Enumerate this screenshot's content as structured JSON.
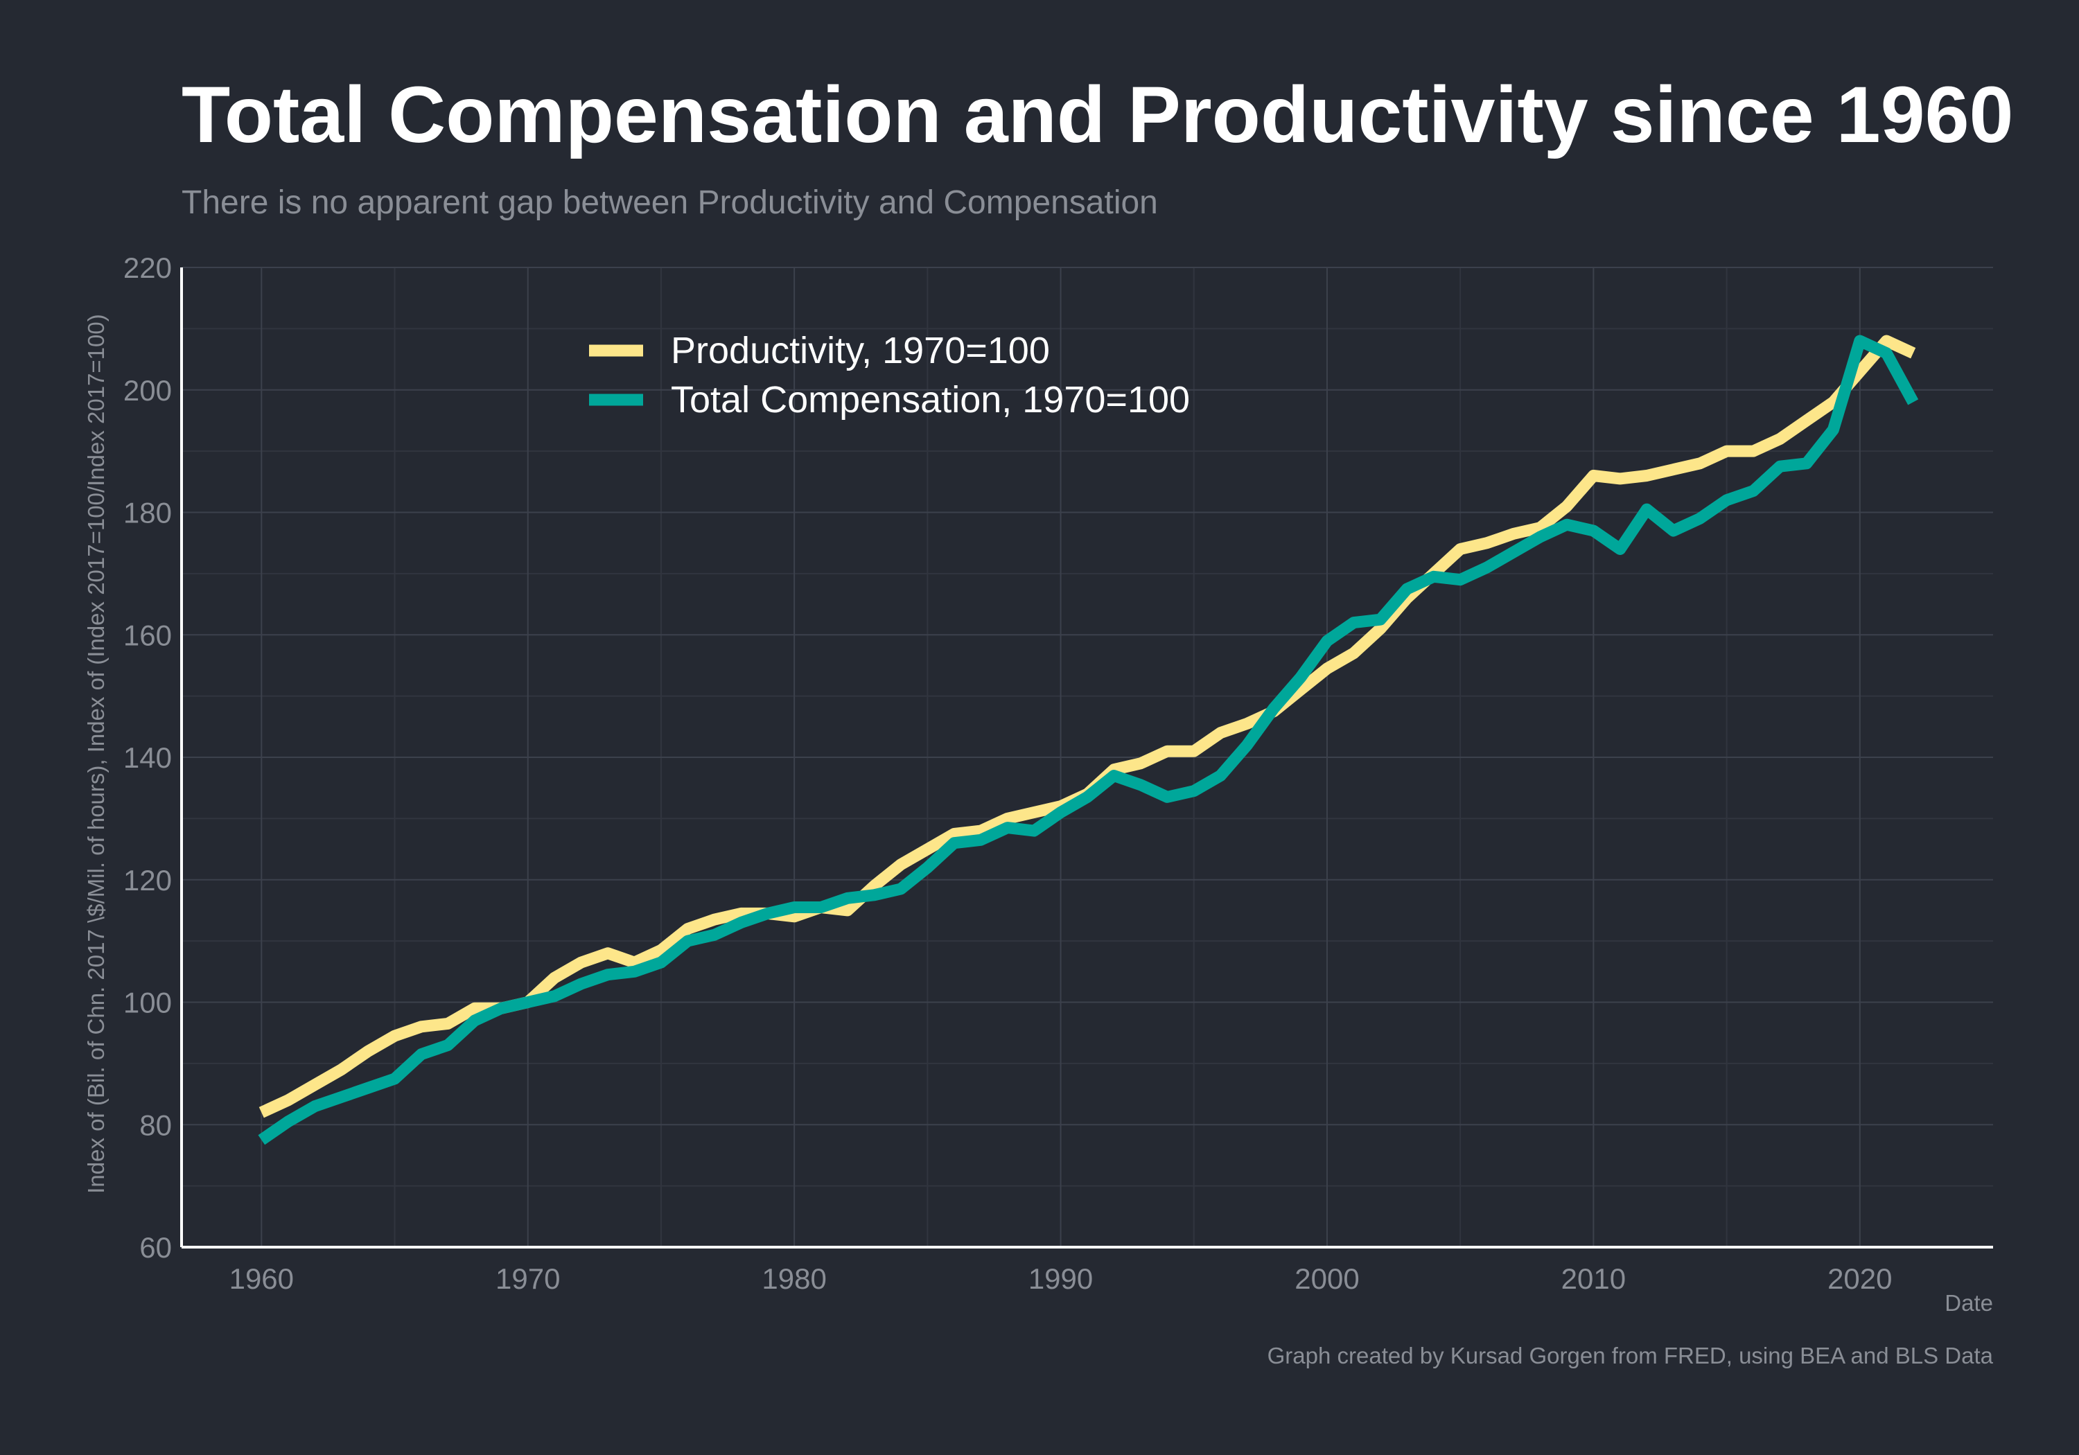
{
  "colors": {
    "background": "#252932",
    "productivity": "#fde68a",
    "compensation": "#00a79a",
    "text_primary": "#ffffff",
    "text_secondary": "#8a8e96",
    "grid": "#3c414c"
  },
  "chart_data": {
    "type": "line",
    "title": "Total Compensation and Productivity since 1960",
    "subtitle": "There is no apparent gap between Productivity and Compensation",
    "xlabel": "Date",
    "ylabel": "Index of (Bil. of Chn. 2017 \\$/Mil. of hours), Index of (Index 2017=100/Index 2017=100)",
    "caption": "Graph created by Kursad Gorgen from FRED, using BEA and BLS Data",
    "xlim": [
      1957,
      2025
    ],
    "ylim": [
      60,
      220
    ],
    "x_ticks": [
      1960,
      1970,
      1980,
      1990,
      2000,
      2010,
      2020
    ],
    "x_tick_labels": [
      "1960",
      "1970",
      "1980",
      "1990",
      "2000",
      "2010",
      "2020"
    ],
    "y_ticks": [
      60,
      80,
      100,
      120,
      140,
      160,
      180,
      200,
      220
    ],
    "y_tick_labels": [
      "60",
      "80",
      "100",
      "120",
      "140",
      "160",
      "180",
      "200",
      "220"
    ],
    "grid": true,
    "legend_position": "top-center",
    "x": [
      1960,
      1961,
      1962,
      1963,
      1964,
      1965,
      1966,
      1967,
      1968,
      1969,
      1970,
      1971,
      1972,
      1973,
      1974,
      1975,
      1976,
      1977,
      1978,
      1979,
      1980,
      1981,
      1982,
      1983,
      1984,
      1985,
      1986,
      1987,
      1988,
      1989,
      1990,
      1991,
      1992,
      1993,
      1994,
      1995,
      1996,
      1997,
      1998,
      1999,
      2000,
      2001,
      2002,
      2003,
      2004,
      2005,
      2006,
      2007,
      2008,
      2009,
      2010,
      2011,
      2012,
      2013,
      2014,
      2015,
      2016,
      2017,
      2018,
      2019,
      2020,
      2021,
      2022
    ],
    "series": [
      {
        "name": "Productivity, 1970=100",
        "color": "#fde68a",
        "values": [
          82,
          84,
          86.5,
          89,
          92,
          94.5,
          96,
          96.5,
          99,
          99,
          100,
          104,
          106.5,
          108,
          106.5,
          108.5,
          112,
          113.5,
          114.5,
          114.5,
          114,
          115.5,
          115,
          119,
          122.5,
          125,
          127.5,
          128,
          130,
          131,
          132,
          134,
          138,
          139,
          141,
          141,
          144,
          145.5,
          147.5,
          151,
          154.5,
          157,
          161,
          166,
          170,
          174,
          175,
          176.5,
          177.5,
          181,
          186,
          185.5,
          186,
          187,
          188,
          190,
          190,
          192,
          195,
          198,
          203,
          208,
          206
        ]
      },
      {
        "name": "Total Compensation, 1970=100",
        "color": "#00a79a",
        "values": [
          77.5,
          80.5,
          83,
          84.5,
          86,
          87.5,
          91.5,
          93,
          97,
          99,
          100,
          101,
          103,
          104.5,
          105,
          106.5,
          110,
          111,
          113,
          114.5,
          115.5,
          115.5,
          117,
          117.5,
          118.5,
          122,
          126,
          126.5,
          128.5,
          128,
          131,
          133.5,
          137,
          135.5,
          133.5,
          134.5,
          137,
          142,
          148,
          153,
          159,
          162,
          162.5,
          167.5,
          169.5,
          169,
          171,
          173.5,
          176,
          178,
          177,
          174,
          180.5,
          177,
          179,
          182,
          183.5,
          187.5,
          188,
          193.5,
          208,
          206,
          198
        ]
      }
    ]
  }
}
